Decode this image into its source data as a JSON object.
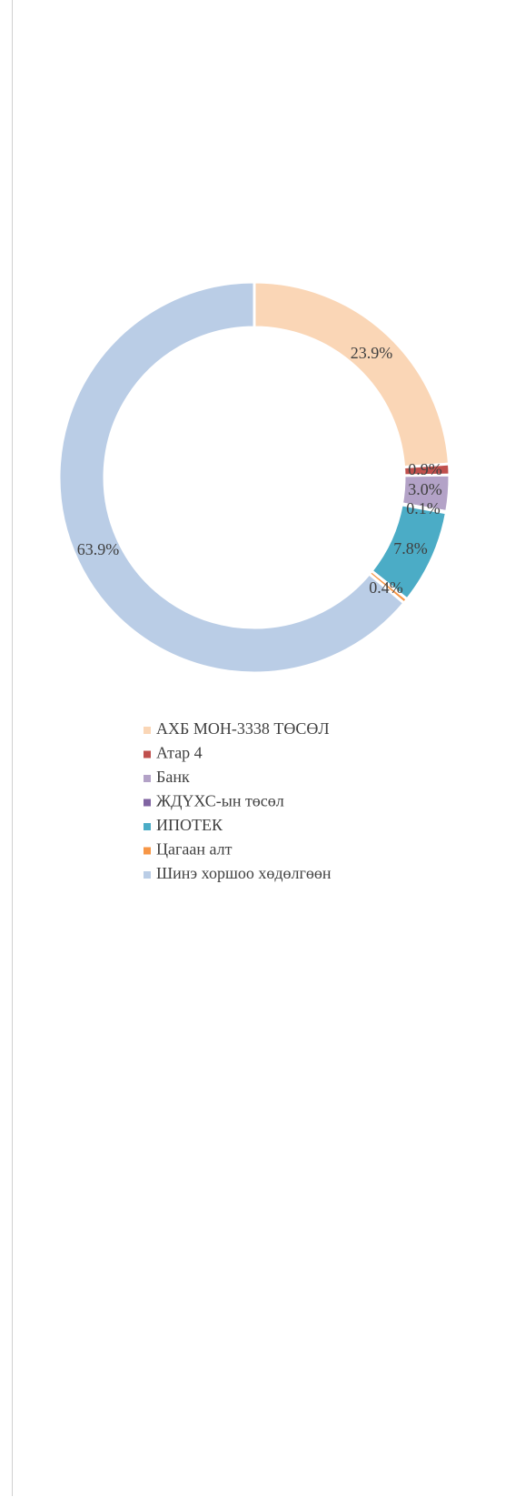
{
  "chart_data": {
    "type": "donut",
    "categories": [
      "АХБ МОН-3338 ТӨСӨЛ",
      "Атар 4",
      "Банк",
      "ЖДҮХС-ын төсөл",
      "ИПОТЕК",
      "Цагаан алт",
      "Шинэ хоршоо хөдөлгөөн"
    ],
    "values": [
      23.9,
      0.9,
      3.0,
      0.1,
      7.8,
      0.4,
      63.9
    ],
    "value_labels": [
      "23.9%",
      "0.9%",
      "3.0%",
      "0.1%",
      "7.8%",
      "0.4%",
      "63.9%"
    ],
    "colors": [
      "#fad6b6",
      "#c0504d",
      "#b3a2c7",
      "#8064a2",
      "#4bacc6",
      "#f79646",
      "#bacde6"
    ],
    "legend": "bottom"
  }
}
